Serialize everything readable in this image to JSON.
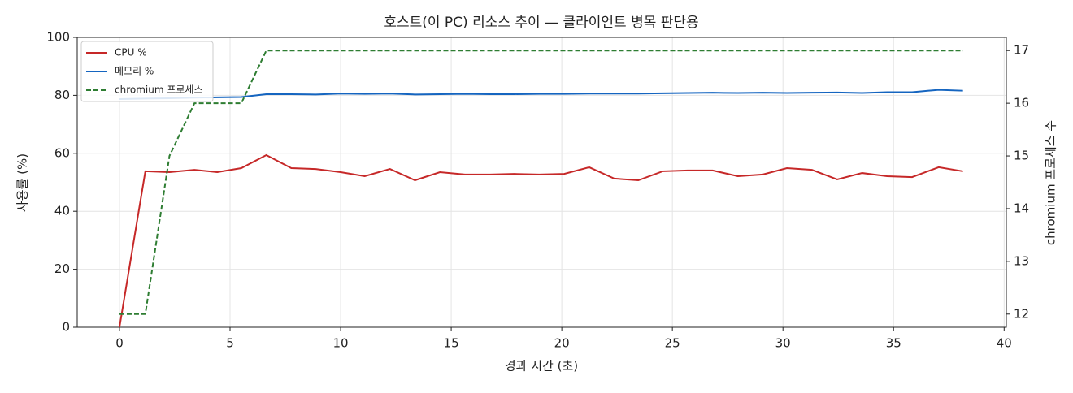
{
  "chart_data": {
    "type": "line",
    "title": "호스트(이 PC) 리소스 추이 — 클라이언트 병목 판단용",
    "x_label": "경과 시간 (초)",
    "y_label": "사용률 (%)",
    "y2_label": "chromium 프로세스 수",
    "x": [
      0,
      1.17,
      2.26,
      3.39,
      4.42,
      5.51,
      6.64,
      7.77,
      8.87,
      10.0,
      11.09,
      12.23,
      13.36,
      14.49,
      15.62,
      16.75,
      17.85,
      18.98,
      20.11,
      21.24,
      22.37,
      23.46,
      24.56,
      25.69,
      26.82,
      27.96,
      29.09,
      30.18,
      31.31,
      32.45,
      33.58,
      34.71,
      35.84,
      37.04,
      38.14
    ],
    "series": [
      {
        "name": "CPU %",
        "color": "#c62828",
        "linestyle": "solid",
        "axis": "y",
        "values": [
          0,
          53.8,
          53.5,
          54.3,
          53.5,
          54.9,
          59.4,
          54.9,
          54.6,
          53.5,
          52.1,
          54.6,
          50.7,
          53.5,
          52.7,
          52.7,
          52.9,
          52.7,
          52.9,
          55.2,
          51.3,
          50.7,
          53.8,
          54.1,
          54.1,
          52.1,
          52.7,
          54.9,
          54.3,
          51.0,
          53.2,
          52.1,
          51.8,
          55.2,
          53.8
        ]
      },
      {
        "name": "메모리 %",
        "color": "#1565c0",
        "linestyle": "solid",
        "axis": "y",
        "values": [
          78.7,
          78.9,
          79.0,
          79.2,
          79.3,
          79.4,
          80.4,
          80.4,
          80.3,
          80.6,
          80.5,
          80.6,
          80.3,
          80.4,
          80.5,
          80.4,
          80.4,
          80.5,
          80.5,
          80.6,
          80.6,
          80.6,
          80.7,
          80.8,
          80.9,
          80.8,
          80.9,
          80.8,
          80.9,
          81.0,
          80.8,
          81.1,
          81.1,
          81.9,
          81.6
        ]
      },
      {
        "name": "chromium 프로세스",
        "color": "#2e7d32",
        "linestyle": "dashed",
        "axis": "y2",
        "values": [
          12,
          12,
          15,
          16,
          16,
          16,
          17,
          17,
          17,
          17,
          17,
          17,
          17,
          17,
          17,
          17,
          17,
          17,
          17,
          17,
          17,
          17,
          17,
          17,
          17,
          17,
          17,
          17,
          17,
          17,
          17,
          17,
          17,
          17,
          17
        ]
      }
    ],
    "xlim": [
      -1.91,
      40.1
    ],
    "xticks": [
      0,
      5,
      10,
      15,
      20,
      25,
      30,
      35,
      40
    ],
    "ylim": [
      0,
      100
    ],
    "yticks": [
      0,
      20,
      40,
      60,
      80,
      100
    ],
    "y2lim": [
      11.75,
      17.25
    ],
    "y2ticks": [
      12,
      13,
      14,
      15,
      16,
      17
    ],
    "grid": true,
    "legend": "upper-left"
  }
}
